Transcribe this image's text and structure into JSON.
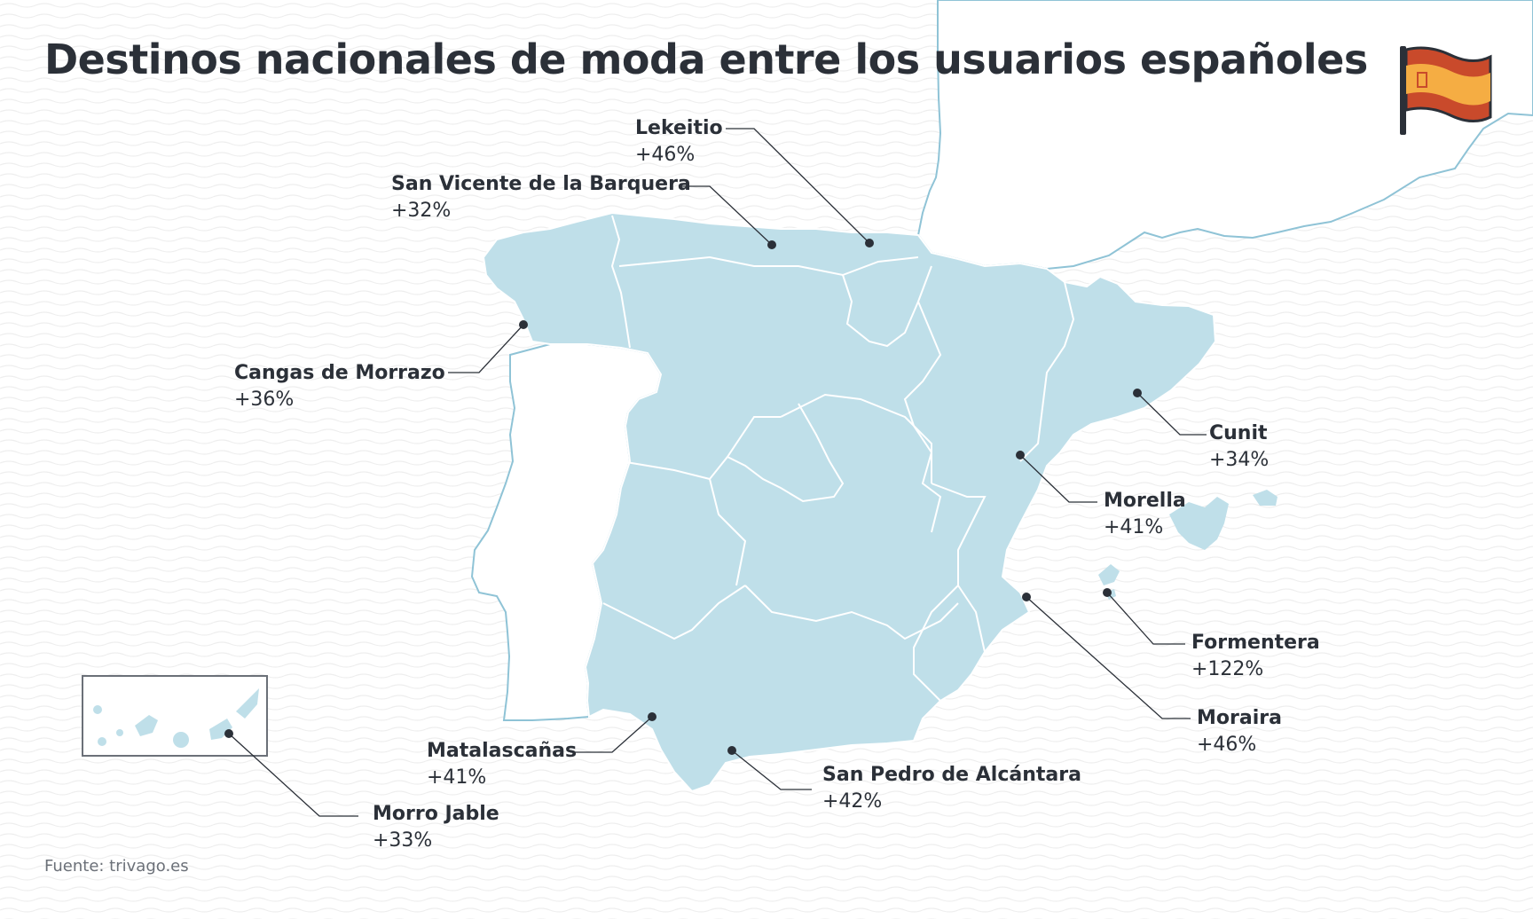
{
  "title": "Destinos nacionales de moda entre los usuarios españoles",
  "source": "Fuente: trivago.es",
  "flag": {
    "icon": "spain-flag-icon",
    "colors": {
      "red": "#c94a2b",
      "yellow": "#f5ad43",
      "pole": "#2b3038"
    }
  },
  "colors": {
    "spain_fill": "#bfdfe9",
    "coast_line": "#8fc3d6",
    "dot": "#2b3038",
    "text": "#2b3038"
  },
  "destinations": [
    {
      "name": "Lekeitio",
      "change": "+46%"
    },
    {
      "name": "San Vicente de la Barquera",
      "change": "+32%"
    },
    {
      "name": "Cangas de Morrazo",
      "change": "+36%"
    },
    {
      "name": "Cunit",
      "change": "+34%"
    },
    {
      "name": "Morella",
      "change": "+41%"
    },
    {
      "name": "Formentera",
      "change": "+122%"
    },
    {
      "name": "Moraira",
      "change": "+46%"
    },
    {
      "name": "San Pedro de Alcántara",
      "change": "+42%"
    },
    {
      "name": "Matalascañas",
      "change": "+41%"
    },
    {
      "name": "Morro Jable",
      "change": "+33%"
    }
  ]
}
